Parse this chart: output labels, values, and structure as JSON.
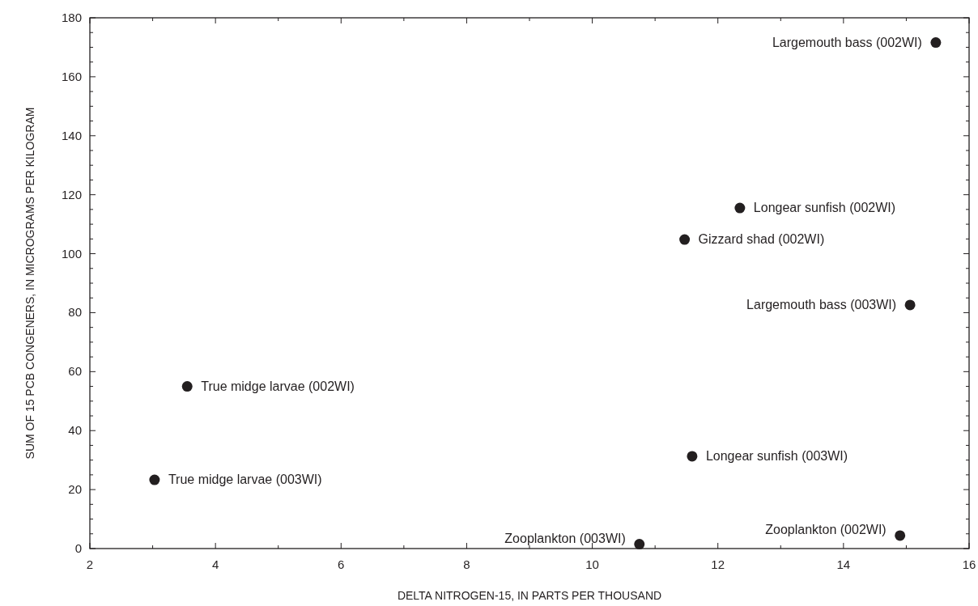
{
  "chart_data": {
    "type": "scatter",
    "xlabel": "DELTA NITROGEN-15, IN PARTS PER THOUSAND",
    "ylabel": "SUM OF 15 PCB CONGENERS, IN MICROGRAMS PER KILOGRAM",
    "x": [
      3.55,
      3.03,
      10.75,
      14.9,
      11.59,
      11.47,
      12.35,
      15.06,
      15.47
    ],
    "series": [
      {
        "color": "#231f20",
        "values": [
          55,
          23.3,
          1.5,
          4.4,
          31.3,
          104.8,
          115.5,
          82.6,
          171.6
        ]
      }
    ],
    "marker": "circle",
    "grid": false,
    "xlim": [
      2,
      16
    ],
    "ylim": [
      0,
      180
    ],
    "xticks": [
      2,
      {
        "value": 3,
        "label": null
      },
      4,
      {
        "value": 5,
        "label": null
      },
      6,
      {
        "value": 7,
        "label": null
      },
      8,
      {
        "value": 9,
        "label": null
      },
      10,
      {
        "value": 11,
        "label": null
      },
      12,
      {
        "value": 13,
        "label": null
      },
      14,
      {
        "value": 15,
        "label": null
      },
      16
    ],
    "yticks": [
      0,
      {
        "value": 5,
        "label": null
      },
      {
        "value": 10,
        "label": null
      },
      {
        "value": 15,
        "label": null
      },
      20,
      {
        "value": 25,
        "label": null
      },
      {
        "value": 30,
        "label": null
      },
      {
        "value": 35,
        "label": null
      },
      40,
      {
        "value": 45,
        "label": null
      },
      {
        "value": 50,
        "label": null
      },
      {
        "value": 55,
        "label": null
      },
      60,
      {
        "value": 65,
        "label": null
      },
      {
        "value": 70,
        "label": null
      },
      {
        "value": 75,
        "label": null
      },
      80,
      {
        "value": 85,
        "label": null
      },
      {
        "value": 90,
        "label": null
      },
      {
        "value": 95,
        "label": null
      },
      100,
      {
        "value": 105,
        "label": null
      },
      {
        "value": 110,
        "label": null
      },
      {
        "value": 115,
        "label": null
      },
      120,
      {
        "value": 125,
        "label": null
      },
      {
        "value": 130,
        "label": null
      },
      {
        "value": 135,
        "label": null
      },
      140,
      {
        "value": 145,
        "label": null
      },
      {
        "value": 150,
        "label": null
      },
      {
        "value": 155,
        "label": null
      },
      160,
      {
        "value": 165,
        "label": null
      },
      {
        "value": 170,
        "label": null
      },
      {
        "value": 175,
        "label": null
      },
      180
    ],
    "annotations": [
      {
        "text": "True midge larvae (002WI)",
        "x": 3.55,
        "y": 55
      },
      {
        "text": "True midge larvae (003WI)",
        "x": 3.03,
        "y": 23.3
      },
      {
        "text": "Zooplankton (003WI)",
        "x": 10.75,
        "y": 1.5
      },
      {
        "text": "Zooplankton (002WI)",
        "x": 14.9,
        "y": 4.4
      },
      {
        "text": "Longear sunfish (003WI)",
        "x": 11.59,
        "y": 31.3
      },
      {
        "text": "Gizzard shad (002WI)",
        "x": 11.47,
        "y": 104.8
      },
      {
        "text": "Longear sunfish (002WI)",
        "x": 12.35,
        "y": 115.5
      },
      {
        "text": "Largemouth bass (003WI)",
        "x": 15.06,
        "y": 82.6
      },
      {
        "text": "Largemouth bass (002WI)",
        "x": 15.47,
        "y": 171.6
      }
    ]
  }
}
